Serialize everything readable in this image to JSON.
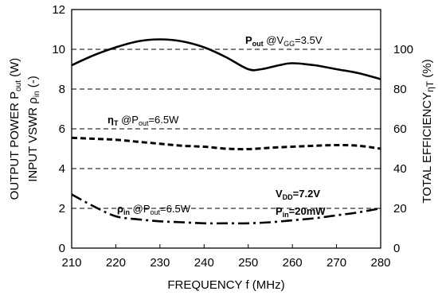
{
  "chart_data": {
    "type": "line",
    "x_axis": {
      "label": "FREQUENCY f (MHz)",
      "range": [
        210,
        280
      ],
      "ticks": [
        210,
        220,
        230,
        240,
        250,
        260,
        270,
        280
      ]
    },
    "y_left": {
      "label": "OUTPUT POWER P",
      "label_sub": "out",
      "label_suffix": " (W)",
      "label2": "INPUT VSWR ",
      "label2_greek": "ρ",
      "label2_sub": "in",
      "label2_suffix": " (-)",
      "range": [
        0,
        12
      ],
      "ticks": [
        0,
        2,
        4,
        6,
        8,
        10,
        12
      ]
    },
    "y_right": {
      "label": "TOTAL EFFICIENCY",
      "label_greek": "ηT",
      "label_suffix": " (%)",
      "range": [
        0,
        120
      ],
      "ticks": [
        0,
        20,
        40,
        60,
        80,
        100
      ]
    },
    "grid": "horizontal-dashed",
    "series": [
      {
        "axis": "left",
        "style": "solid",
        "x": [
          210,
          215,
          220,
          225,
          230,
          235,
          240,
          245,
          250,
          253,
          257,
          260,
          265,
          270,
          275,
          280
        ],
        "y": [
          9.2,
          9.7,
          10.1,
          10.4,
          10.5,
          10.4,
          10.1,
          9.6,
          9.0,
          9.0,
          9.2,
          9.3,
          9.2,
          9.0,
          8.8,
          8.5
        ]
      },
      {
        "axis": "left",
        "style": "dashed",
        "x": [
          210,
          215,
          220,
          225,
          230,
          235,
          240,
          245,
          250,
          255,
          260,
          265,
          270,
          275,
          280
        ],
        "y": [
          5.55,
          5.5,
          5.45,
          5.35,
          5.25,
          5.15,
          5.1,
          5.0,
          4.98,
          5.05,
          5.1,
          5.15,
          5.18,
          5.15,
          5.0
        ]
      },
      {
        "axis": "left",
        "style": "dashdot",
        "x": [
          210,
          215,
          220,
          225,
          230,
          235,
          240,
          245,
          250,
          255,
          260,
          265,
          270,
          275,
          280
        ],
        "y": [
          2.7,
          2.1,
          1.6,
          1.45,
          1.35,
          1.3,
          1.25,
          1.25,
          1.25,
          1.3,
          1.4,
          1.5,
          1.65,
          1.8,
          2.0
        ]
      }
    ],
    "annotations": [
      {
        "id": "pout",
        "main": "P",
        "sub": "out",
        "rest": " @V",
        "rest_sub": "GG",
        "tail": "=3.5V"
      },
      {
        "id": "eta",
        "main": "η",
        "sub": "T",
        "rest": " @P",
        "rest_sub": "out",
        "tail": "=6.5W"
      },
      {
        "id": "rho",
        "main": "ρ",
        "sub": "in",
        "rest": " @P",
        "rest_sub": "out",
        "tail": "=6.5W"
      },
      {
        "id": "vdd",
        "main": "V",
        "sub": "DD",
        "tail": "=7.2V"
      },
      {
        "id": "pin",
        "main": "P",
        "sub": "in",
        "tail": "=20mW"
      }
    ]
  }
}
